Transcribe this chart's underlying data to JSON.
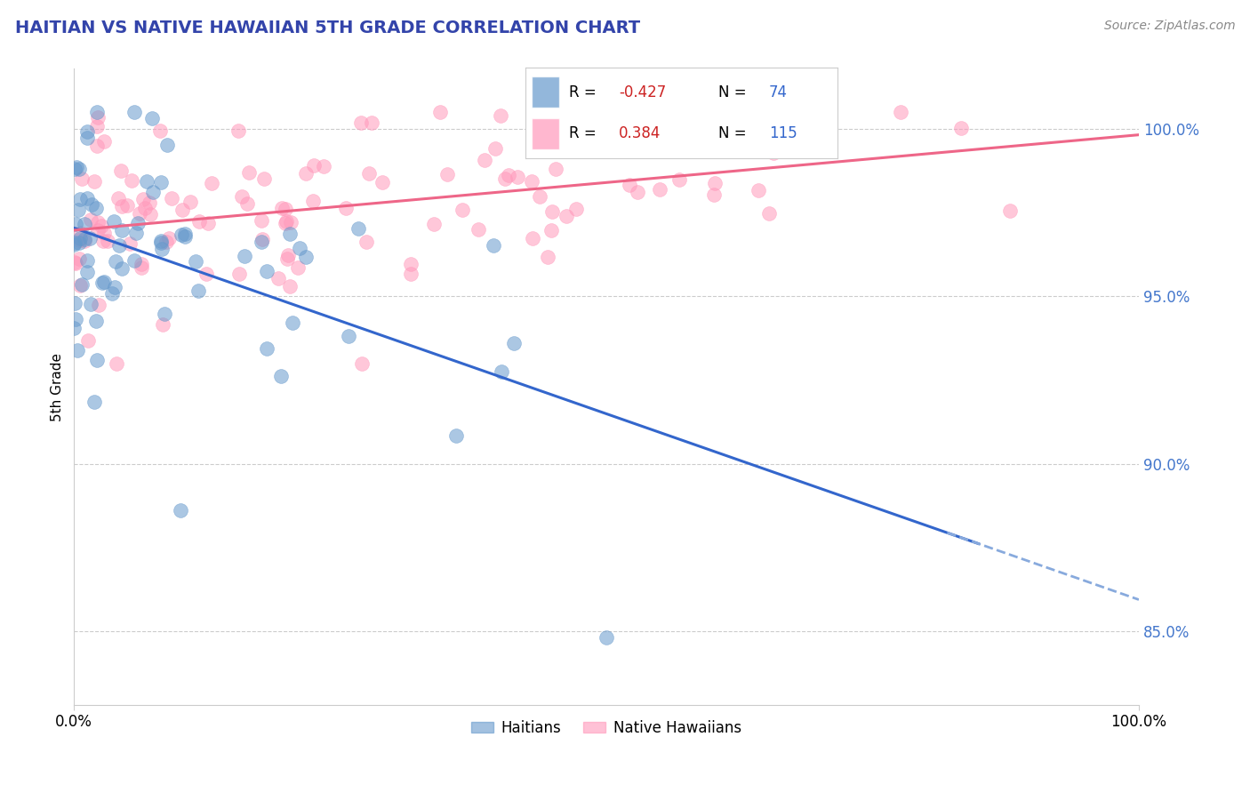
{
  "title": "HAITIAN VS NATIVE HAWAIIAN 5TH GRADE CORRELATION CHART",
  "source_text": "Source: ZipAtlas.com",
  "ylabel": "5th Grade",
  "xlim": [
    0.0,
    1.0
  ],
  "ylim": [
    0.828,
    1.018
  ],
  "yticks": [
    0.85,
    0.9,
    0.95,
    1.0
  ],
  "ytick_labels": [
    "85.0%",
    "90.0%",
    "95.0%",
    "100.0%"
  ],
  "xticks": [
    0.0,
    1.0
  ],
  "xtick_labels": [
    "0.0%",
    "100.0%"
  ],
  "haitian_color": "#6699CC",
  "hawaiian_color": "#FF99BB",
  "haitian_R": -0.427,
  "haitian_N": 74,
  "hawaiian_R": 0.384,
  "hawaiian_N": 115,
  "background_color": "#FFFFFF",
  "grid_color": "#CCCCCC",
  "title_color": "#3344AA"
}
